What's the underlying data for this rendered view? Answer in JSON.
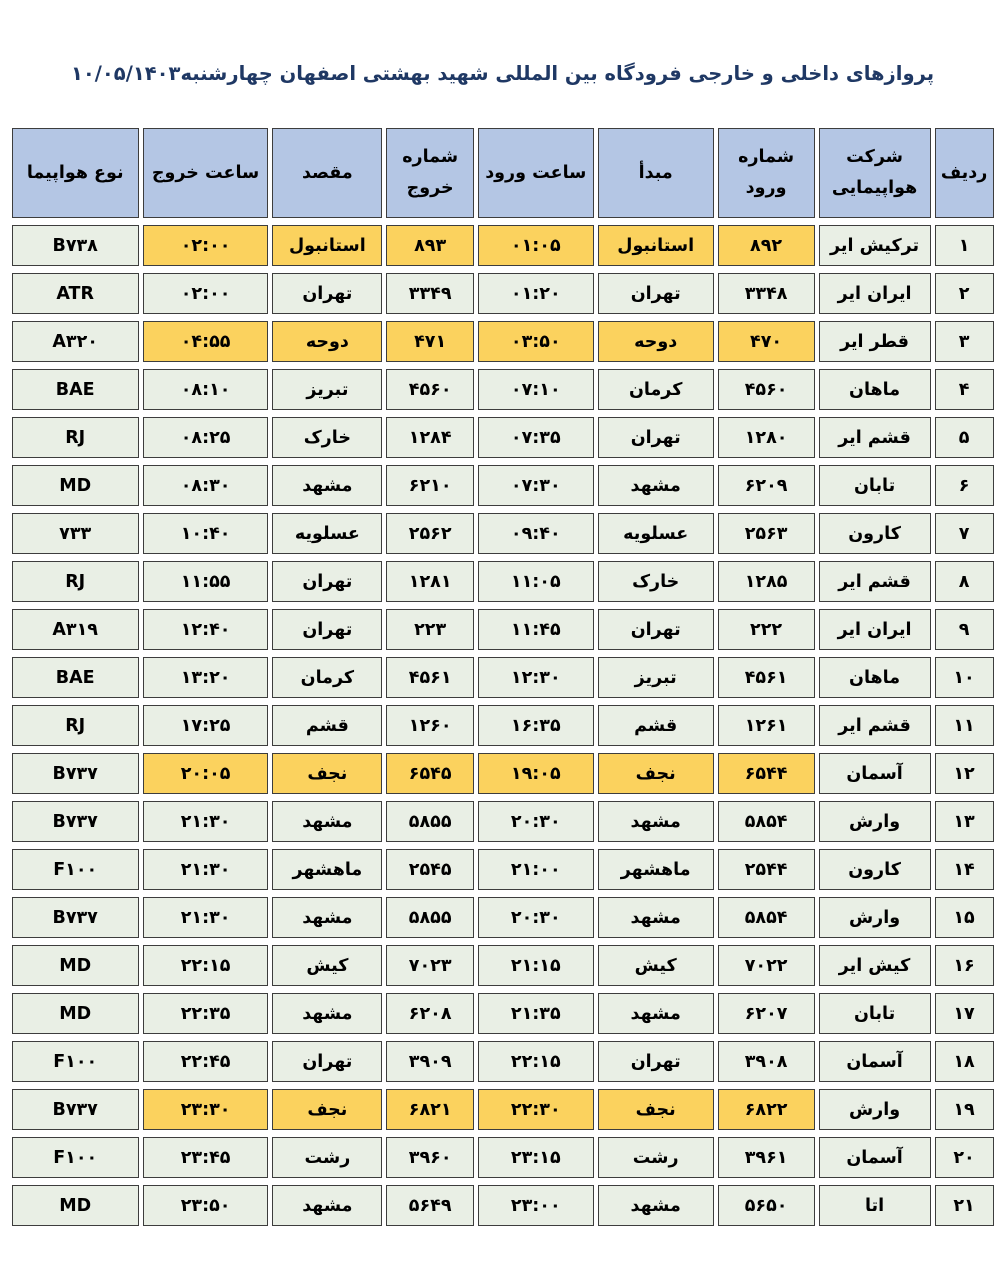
{
  "title": "پروازهای داخلی و خارجی فرودگاه بین المللی شهید بهشتی اصفهان چهارشنبه۱۰/۰۵/۱۴۰۳",
  "colors": {
    "title_color": "#1f3864",
    "header_bg": "#b4c6e4",
    "row_bg": "#e9efe5",
    "highlight_bg": "#fbd25e",
    "border_color": "#3d3d3d"
  },
  "table": {
    "columns": [
      {
        "key": "row",
        "label": "ردیف"
      },
      {
        "key": "airline",
        "label": "شرکت\nهواپیمایی"
      },
      {
        "key": "arrival_no",
        "label": "شماره\nورود"
      },
      {
        "key": "origin",
        "label": "مبدأ"
      },
      {
        "key": "arrival_time",
        "label": "ساعت ورود"
      },
      {
        "key": "departure_no",
        "label": "شماره\nخروج"
      },
      {
        "key": "destination",
        "label": "مقصد"
      },
      {
        "key": "departure_time",
        "label": "ساعت خروج"
      },
      {
        "key": "aircraft",
        "label": "نوع هواپیما"
      }
    ],
    "highlight_columns": [
      "arrival_no",
      "origin",
      "arrival_time",
      "departure_no",
      "destination",
      "departure_time"
    ],
    "rows": [
      {
        "row": "۱",
        "airline": "ترکیش ایر",
        "arrival_no": "۸۹۲",
        "origin": "استانبول",
        "arrival_time": "۰۱:۰۵",
        "departure_no": "۸۹۳",
        "destination": "استانبول",
        "departure_time": "۰۲:۰۰",
        "aircraft": "B۷۳۸",
        "highlighted": true
      },
      {
        "row": "۲",
        "airline": "ایران ایر",
        "arrival_no": "۳۳۴۸",
        "origin": "تهران",
        "arrival_time": "۰۱:۲۰",
        "departure_no": "۳۳۴۹",
        "destination": "تهران",
        "departure_time": "۰۲:۰۰",
        "aircraft": "ATR",
        "highlighted": false
      },
      {
        "row": "۳",
        "airline": "قطر ایر",
        "arrival_no": "۴۷۰",
        "origin": "دوحه",
        "arrival_time": "۰۳:۵۰",
        "departure_no": "۴۷۱",
        "destination": "دوحه",
        "departure_time": "۰۴:۵۵",
        "aircraft": "A۳۲۰",
        "highlighted": true
      },
      {
        "row": "۴",
        "airline": "ماهان",
        "arrival_no": "۴۵۶۰",
        "origin": "کرمان",
        "arrival_time": "۰۷:۱۰",
        "departure_no": "۴۵۶۰",
        "destination": "تبریز",
        "departure_time": "۰۸:۱۰",
        "aircraft": "BAE",
        "highlighted": false
      },
      {
        "row": "۵",
        "airline": "قشم ایر",
        "arrival_no": "۱۲۸۰",
        "origin": "تهران",
        "arrival_time": "۰۷:۳۵",
        "departure_no": "۱۲۸۴",
        "destination": "خارک",
        "departure_time": "۰۸:۲۵",
        "aircraft": "RJ",
        "highlighted": false
      },
      {
        "row": "۶",
        "airline": "تابان",
        "arrival_no": "۶۲۰۹",
        "origin": "مشهد",
        "arrival_time": "۰۷:۳۰",
        "departure_no": "۶۲۱۰",
        "destination": "مشهد",
        "departure_time": "۰۸:۳۰",
        "aircraft": "MD",
        "highlighted": false
      },
      {
        "row": "۷",
        "airline": "کارون",
        "arrival_no": "۲۵۶۳",
        "origin": "عسلویه",
        "arrival_time": "۰۹:۴۰",
        "departure_no": "۲۵۶۲",
        "destination": "عسلویه",
        "departure_time": "۱۰:۴۰",
        "aircraft": "۷۳۳",
        "highlighted": false
      },
      {
        "row": "۸",
        "airline": "قشم ایر",
        "arrival_no": "۱۲۸۵",
        "origin": "خارک",
        "arrival_time": "۱۱:۰۵",
        "departure_no": "۱۲۸۱",
        "destination": "تهران",
        "departure_time": "۱۱:۵۵",
        "aircraft": "RJ",
        "highlighted": false
      },
      {
        "row": "۹",
        "airline": "ایران ایر",
        "arrival_no": "۲۲۲",
        "origin": "تهران",
        "arrival_time": "۱۱:۴۵",
        "departure_no": "۲۲۳",
        "destination": "تهران",
        "departure_time": "۱۲:۴۰",
        "aircraft": "A۳۱۹",
        "highlighted": false
      },
      {
        "row": "۱۰",
        "airline": "ماهان",
        "arrival_no": "۴۵۶۱",
        "origin": "تبریز",
        "arrival_time": "۱۲:۳۰",
        "departure_no": "۴۵۶۱",
        "destination": "کرمان",
        "departure_time": "۱۳:۲۰",
        "aircraft": "BAE",
        "highlighted": false
      },
      {
        "row": "۱۱",
        "airline": "قشم ایر",
        "arrival_no": "۱۲۶۱",
        "origin": "قشم",
        "arrival_time": "۱۶:۳۵",
        "departure_no": "۱۲۶۰",
        "destination": "قشم",
        "departure_time": "۱۷:۲۵",
        "aircraft": "RJ",
        "highlighted": false
      },
      {
        "row": "۱۲",
        "airline": "آسمان",
        "arrival_no": "۶۵۴۴",
        "origin": "نجف",
        "arrival_time": "۱۹:۰۵",
        "departure_no": "۶۵۴۵",
        "destination": "نجف",
        "departure_time": "۲۰:۰۵",
        "aircraft": "B۷۳۷",
        "highlighted": true
      },
      {
        "row": "۱۳",
        "airline": "وارش",
        "arrival_no": "۵۸۵۴",
        "origin": "مشهد",
        "arrival_time": "۲۰:۳۰",
        "departure_no": "۵۸۵۵",
        "destination": "مشهد",
        "departure_time": "۲۱:۳۰",
        "aircraft": "B۷۳۷",
        "highlighted": false
      },
      {
        "row": "۱۴",
        "airline": "کارون",
        "arrival_no": "۲۵۴۴",
        "origin": "ماهشهر",
        "arrival_time": "۲۱:۰۰",
        "departure_no": "۲۵۴۵",
        "destination": "ماهشهر",
        "departure_time": "۲۱:۳۰",
        "aircraft": "F۱۰۰",
        "highlighted": false
      },
      {
        "row": "۱۵",
        "airline": "وارش",
        "arrival_no": "۵۸۵۴",
        "origin": "مشهد",
        "arrival_time": "۲۰:۳۰",
        "departure_no": "۵۸۵۵",
        "destination": "مشهد",
        "departure_time": "۲۱:۳۰",
        "aircraft": "B۷۳۷",
        "highlighted": false
      },
      {
        "row": "۱۶",
        "airline": "کیش ایر",
        "arrival_no": "۷۰۲۲",
        "origin": "کیش",
        "arrival_time": "۲۱:۱۵",
        "departure_no": "۷۰۲۳",
        "destination": "کیش",
        "departure_time": "۲۲:۱۵",
        "aircraft": "MD",
        "highlighted": false
      },
      {
        "row": "۱۷",
        "airline": "تابان",
        "arrival_no": "۶۲۰۷",
        "origin": "مشهد",
        "arrival_time": "۲۱:۳۵",
        "departure_no": "۶۲۰۸",
        "destination": "مشهد",
        "departure_time": "۲۲:۳۵",
        "aircraft": "MD",
        "highlighted": false
      },
      {
        "row": "۱۸",
        "airline": "آسمان",
        "arrival_no": "۳۹۰۸",
        "origin": "تهران",
        "arrival_time": "۲۲:۱۵",
        "departure_no": "۳۹۰۹",
        "destination": "تهران",
        "departure_time": "۲۲:۴۵",
        "aircraft": "F۱۰۰",
        "highlighted": false
      },
      {
        "row": "۱۹",
        "airline": "وارش",
        "arrival_no": "۶۸۲۲",
        "origin": "نجف",
        "arrival_time": "۲۲:۳۰",
        "departure_no": "۶۸۲۱",
        "destination": "نجف",
        "departure_time": "۲۳:۳۰",
        "aircraft": "B۷۳۷",
        "highlighted": true
      },
      {
        "row": "۲۰",
        "airline": "آسمان",
        "arrival_no": "۳۹۶۱",
        "origin": "رشت",
        "arrival_time": "۲۳:۱۵",
        "departure_no": "۳۹۶۰",
        "destination": "رشت",
        "departure_time": "۲۳:۴۵",
        "aircraft": "F۱۰۰",
        "highlighted": false
      },
      {
        "row": "۲۱",
        "airline": "اتا",
        "arrival_no": "۵۶۵۰",
        "origin": "مشهد",
        "arrival_time": "۲۳:۰۰",
        "departure_no": "۵۶۴۹",
        "destination": "مشهد",
        "departure_time": "۲۳:۵۰",
        "aircraft": "MD",
        "highlighted": false
      }
    ]
  }
}
